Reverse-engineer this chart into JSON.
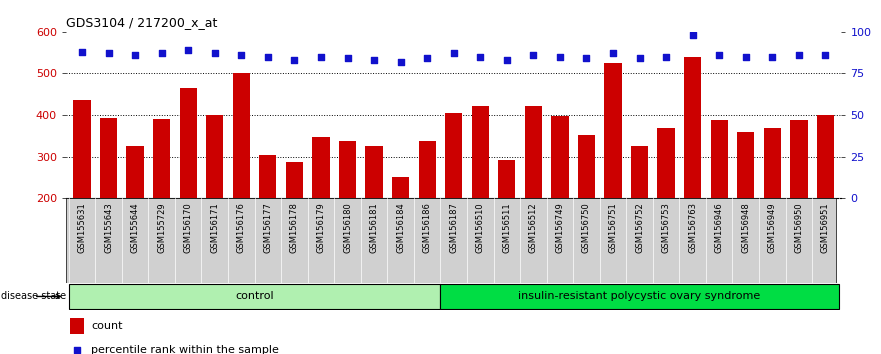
{
  "title": "GDS3104 / 217200_x_at",
  "categories": [
    "GSM155631",
    "GSM155643",
    "GSM155644",
    "GSM155729",
    "GSM156170",
    "GSM156171",
    "GSM156176",
    "GSM156177",
    "GSM156178",
    "GSM156179",
    "GSM156180",
    "GSM156181",
    "GSM156184",
    "GSM156186",
    "GSM156187",
    "GSM156510",
    "GSM156511",
    "GSM156512",
    "GSM156749",
    "GSM156750",
    "GSM156751",
    "GSM156752",
    "GSM156753",
    "GSM156763",
    "GSM156946",
    "GSM156948",
    "GSM156949",
    "GSM156950",
    "GSM156951"
  ],
  "bar_values": [
    437,
    393,
    325,
    390,
    465,
    400,
    500,
    305,
    287,
    347,
    338,
    325,
    250,
    338,
    405,
    422,
    291,
    422,
    398,
    352,
    525,
    325,
    370,
    540,
    387,
    360,
    370,
    388,
    400
  ],
  "percentile_values": [
    88,
    87,
    86,
    87,
    89,
    87,
    86,
    85,
    83,
    85,
    84,
    83,
    82,
    84,
    87,
    85,
    83,
    86,
    85,
    84,
    87,
    84,
    85,
    98,
    86,
    85,
    85,
    86,
    86
  ],
  "control_count": 14,
  "group1_label": "control",
  "group2_label": "insulin-resistant polycystic ovary syndrome",
  "disease_state_label": "disease state",
  "bar_color": "#cc0000",
  "dot_color": "#1111cc",
  "ylim_left": [
    200,
    600
  ],
  "ylim_right": [
    0,
    100
  ],
  "yticks_left": [
    200,
    300,
    400,
    500,
    600
  ],
  "yticks_right": [
    0,
    25,
    50,
    75,
    100
  ],
  "grid_values": [
    300,
    400,
    500
  ],
  "legend_count_label": "count",
  "legend_pct_label": "percentile rank within the sample",
  "bar_width": 0.65,
  "tick_bg_color": "#d0d0d0",
  "group1_color": "#b0f0b0",
  "group2_color": "#00dd44",
  "group_border_color": "#000000"
}
